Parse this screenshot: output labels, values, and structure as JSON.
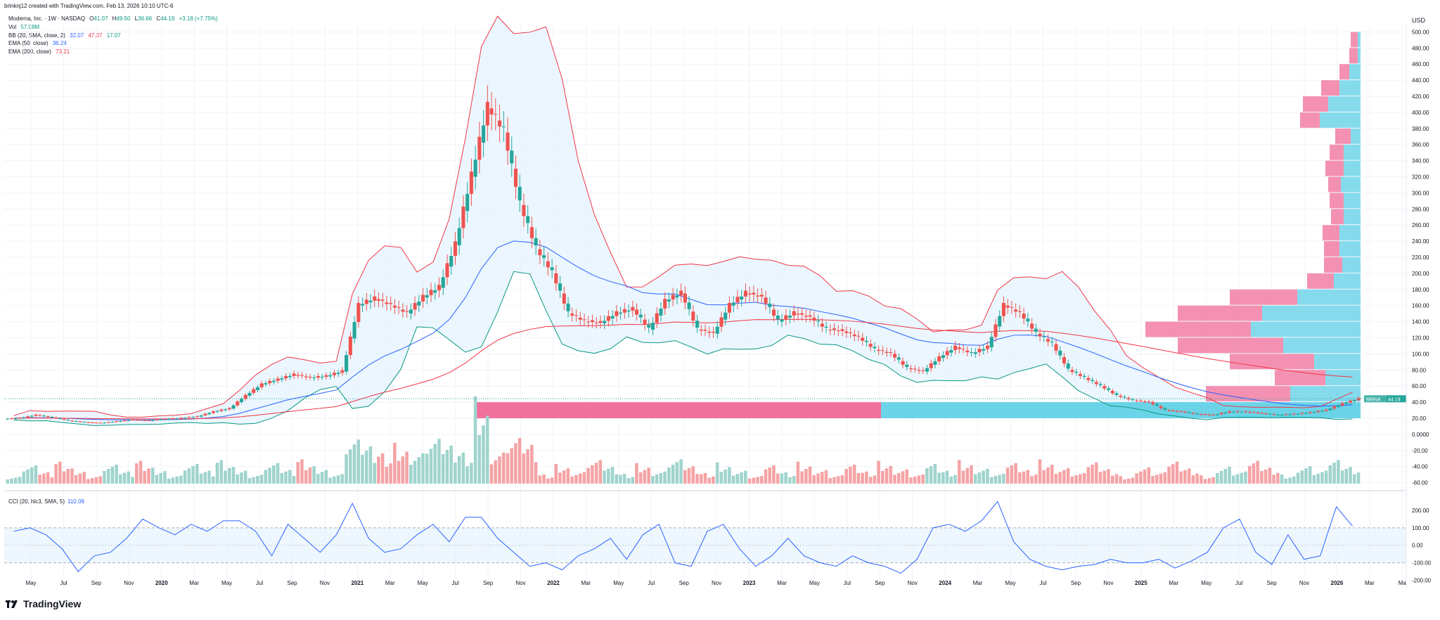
{
  "attribution": "brinknj12 created with TradingView.com, Feb 13, 2026 10:10 UTC-6",
  "legend": {
    "symbol_line": "Moderna, Inc. · 1W · NASDAQ",
    "ohlc": {
      "o_label": "O",
      "o": "41.07",
      "h_label": "H",
      "h": "49.50",
      "l_label": "L",
      "l": "36.66",
      "c_label": "C",
      "c": "44.19",
      "change": "+3.18 (+7.75%)"
    },
    "vol_label": "Vol",
    "vol_value": "57.08M",
    "bb_label": "BB (20, SMA, close, 2)",
    "bb_values": [
      "32.07",
      "47.07",
      "17.07"
    ],
    "ema50_label": "EMA (50, close)",
    "ema50_value": "36.24",
    "ema200_label": "EMA (200, close)",
    "ema200_value": "73.21",
    "cci_label": "CCI (20, hlc3, SMA, 5)",
    "cci_value": "110.09"
  },
  "price_axis": {
    "currency": "USD",
    "ticks": [
      "500.00",
      "480.00",
      "460.00",
      "440.00",
      "420.00",
      "400.00",
      "380.00",
      "360.00",
      "340.00",
      "320.00",
      "300.00",
      "280.00",
      "260.00",
      "240.00",
      "220.00",
      "200.00",
      "180.00",
      "160.00",
      "140.00",
      "120.00",
      "100.00",
      "80.00",
      "60.00",
      "40.00",
      "20.00",
      "0.0000",
      "-20.00",
      "-40.00",
      "-60.00"
    ],
    "last_symbol": "MRNA",
    "last_price": "44.19"
  },
  "cci_axis": {
    "ticks": [
      "200.00",
      "100.00",
      "0.00",
      "-100.00",
      "-200.00"
    ]
  },
  "time_axis": {
    "ticks": [
      "May",
      "Jul",
      "Sep",
      "Nov",
      "2020",
      "Mar",
      "May",
      "Jul",
      "Sep",
      "Nov",
      "2021",
      "Mar",
      "May",
      "Jul",
      "Sep",
      "Nov",
      "2022",
      "Mar",
      "May",
      "Jul",
      "Sep",
      "Nov",
      "2023",
      "Mar",
      "May",
      "Jul",
      "Sep",
      "Nov",
      "2024",
      "Mar",
      "May",
      "Jul",
      "Sep",
      "Nov",
      "2025",
      "Mar",
      "May",
      "Jul",
      "Sep",
      "Nov",
      "2026",
      "Mar",
      "Ma"
    ]
  },
  "colors": {
    "up": "#26a69a",
    "down": "#ef5350",
    "vol_up": "#9fd4cd",
    "vol_down": "#f5a3a5",
    "bb_upper": "#f23645",
    "bb_lower": "#089981",
    "bb_fill": "#e3f2fd",
    "ema50": "#2962ff",
    "ema200": "#f23645",
    "cci": "#2962ff",
    "vp_up": "#5ccfe6",
    "vp_down": "#f06292"
  },
  "brand_name": "TradingView",
  "chart_data": {
    "type": "candlestick",
    "title": "Moderna, Inc. · 1W · NASDAQ",
    "ylabel": "USD",
    "ylim": [
      -70,
      510
    ],
    "x": [
      "2019-03",
      "2019-04",
      "2019-05",
      "2019-06",
      "2019-07",
      "2019-08",
      "2019-09",
      "2019-10",
      "2019-11",
      "2019-12",
      "2020-01",
      "2020-02",
      "2020-03",
      "2020-04",
      "2020-05",
      "2020-06",
      "2020-07",
      "2020-08",
      "2020-09",
      "2020-10",
      "2020-11",
      "2020-12",
      "2021-01",
      "2021-02",
      "2021-03",
      "2021-04",
      "2021-05",
      "2021-06",
      "2021-07",
      "2021-08",
      "2021-09",
      "2021-10",
      "2021-11",
      "2021-12",
      "2022-01",
      "2022-02",
      "2022-03",
      "2022-04",
      "2022-05",
      "2022-06",
      "2022-07",
      "2022-08",
      "2022-09",
      "2022-10",
      "2022-11",
      "2022-12",
      "2023-01",
      "2023-02",
      "2023-03",
      "2023-04",
      "2023-05",
      "2023-06",
      "2023-07",
      "2023-08",
      "2023-09",
      "2023-10",
      "2023-11",
      "2023-12",
      "2024-01",
      "2024-02",
      "2024-03",
      "2024-04",
      "2024-05",
      "2024-06",
      "2024-07",
      "2024-08",
      "2024-09",
      "2024-10",
      "2024-11",
      "2024-12",
      "2025-01",
      "2025-02",
      "2025-03",
      "2025-04",
      "2025-05",
      "2025-06",
      "2025-07",
      "2025-08",
      "2025-09",
      "2025-10",
      "2025-11",
      "2025-12",
      "2026-01",
      "2026-02"
    ],
    "close": [
      20,
      24,
      21,
      17,
      15,
      14,
      16,
      18,
      17,
      19,
      20,
      22,
      28,
      32,
      48,
      62,
      68,
      74,
      70,
      72,
      78,
      160,
      168,
      160,
      150,
      170,
      182,
      235,
      320,
      405,
      375,
      285,
      230,
      200,
      150,
      140,
      138,
      150,
      155,
      130,
      165,
      175,
      130,
      125,
      160,
      175,
      170,
      140,
      150,
      145,
      130,
      128,
      120,
      105,
      100,
      82,
      78,
      95,
      108,
      100,
      108,
      160,
      150,
      125,
      112,
      80,
      70,
      60,
      48,
      42,
      40,
      30,
      28,
      25,
      24,
      28,
      28,
      26,
      24,
      25,
      27,
      30,
      38,
      44
    ],
    "series": [
      {
        "name": "EMA (50, close)",
        "value": "36.24"
      },
      {
        "name": "EMA (200, close)",
        "value": "73.21"
      }
    ],
    "cci": {
      "name": "CCI (20, hlc3, SMA, 5)",
      "ylim": [
        -250,
        280
      ],
      "values": [
        80,
        100,
        60,
        -20,
        -150,
        -60,
        -40,
        40,
        150,
        100,
        60,
        120,
        80,
        140,
        140,
        80,
        -60,
        120,
        40,
        -40,
        60,
        240,
        40,
        -40,
        -20,
        60,
        120,
        20,
        160,
        160,
        40,
        -40,
        -120,
        -100,
        -140,
        -60,
        -20,
        40,
        -80,
        60,
        120,
        -100,
        -120,
        80,
        120,
        -20,
        -120,
        -60,
        40,
        -60,
        -100,
        -120,
        -60,
        -100,
        -120,
        -160,
        -80,
        100,
        120,
        80,
        140,
        250,
        20,
        -80,
        -120,
        -140,
        -120,
        -110,
        -80,
        -100,
        -100,
        -80,
        -130,
        -90,
        -40,
        100,
        150,
        -40,
        -110,
        60,
        -80,
        -60,
        220,
        110
      ]
    },
    "volume_profile": {
      "note": "volume-by-price histogram on right edge",
      "up_color": "#5ccfe6",
      "down_color": "#f06292"
    }
  }
}
